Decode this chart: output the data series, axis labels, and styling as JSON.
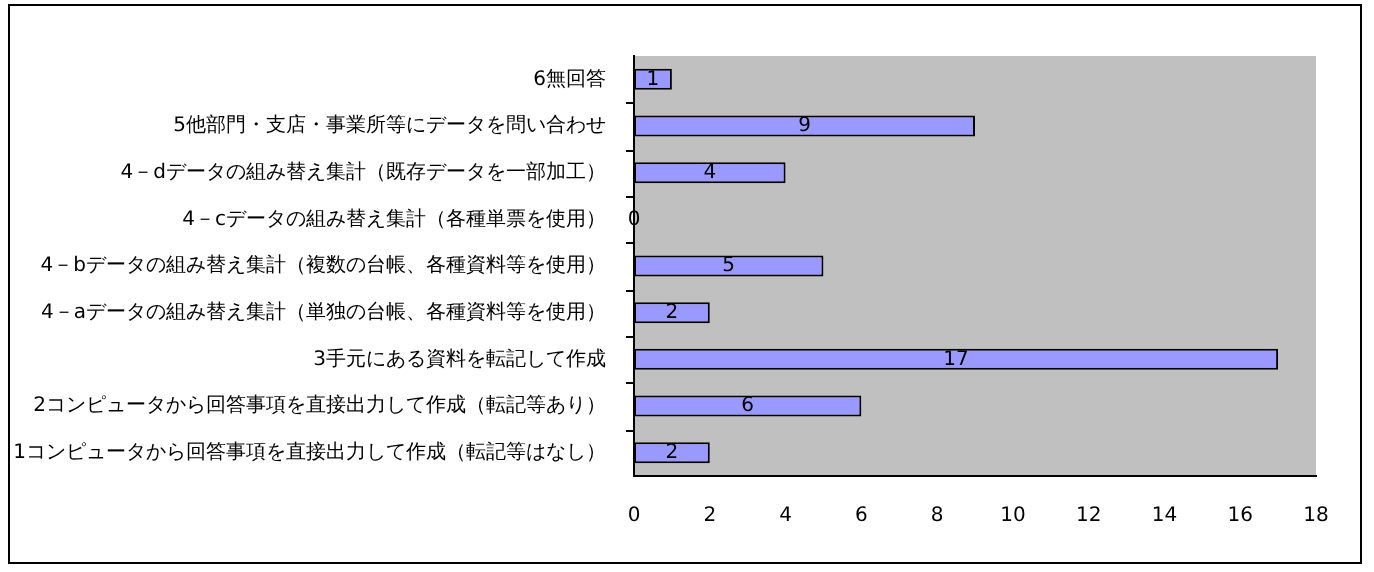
{
  "chart_data": {
    "type": "bar",
    "orientation": "horizontal",
    "categories": [
      "6無回答",
      "5他部門・支店・事業所等にデータを問い合わせ",
      "4－dデータの組み替え集計（既存データを一部加工）",
      "4－cデータの組み替え集計（各種単票を使用）",
      "4－bデータの組み替え集計（複数の台帳、各種資料等を使用）",
      "4－aデータの組み替え集計（単独の台帳、各種資料等を使用）",
      "3手元にある資料を転記して作成",
      "2コンピュータから回答事項を直接出力して作成（転記等あり）",
      "1コンピュータから回答事項を直接出力して作成（転記等はなし）"
    ],
    "values": [
      1,
      9,
      4,
      0,
      5,
      2,
      17,
      6,
      2
    ],
    "color": "#9999ff",
    "xlim": [
      0,
      18
    ],
    "xticks": [
      0,
      2,
      4,
      6,
      8,
      10,
      12,
      14,
      16,
      18
    ],
    "data_labels": true,
    "grid": false,
    "legend": false
  }
}
